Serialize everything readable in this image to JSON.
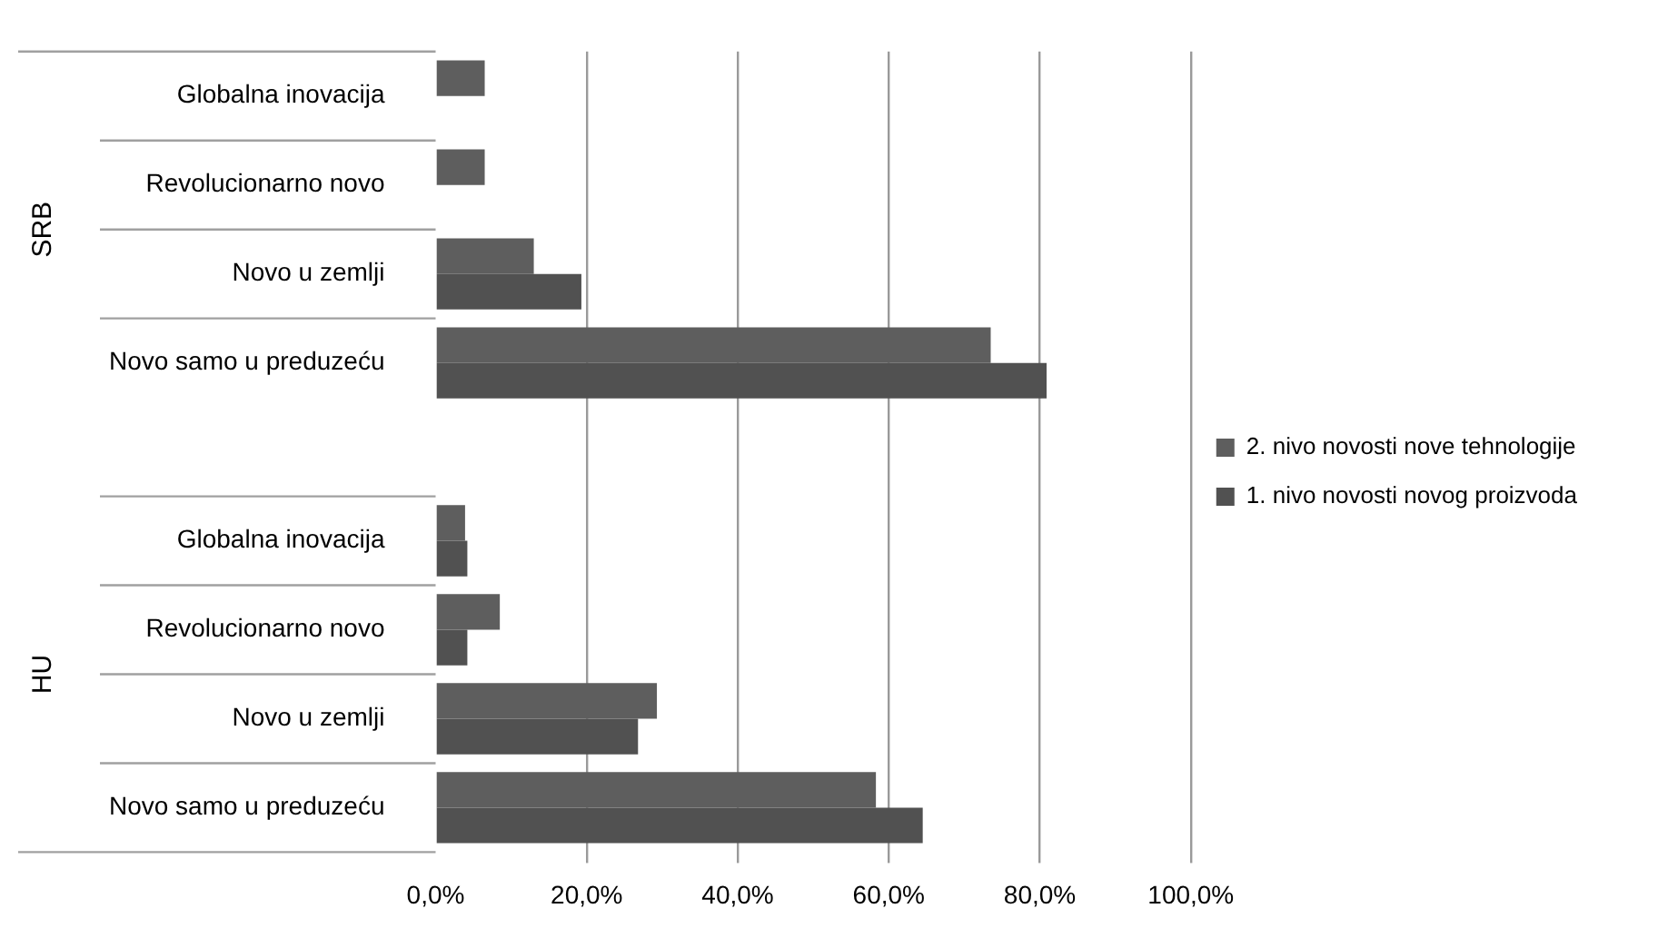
{
  "chart_data": {
    "type": "bar",
    "orientation": "horizontal",
    "categories": [
      "Globalna inovacija",
      "Revolucionarno novo",
      "Novo u zemlji",
      "Novo samo u preduzeću",
      null,
      "Globalna inovacija",
      "Revolucionarno novo",
      "Novo u zemlji",
      "Novo samo u preduzeću"
    ],
    "series": [
      {
        "name": "2. nivo novosti nove tehnologije",
        "color": "#5e5e5e",
        "values": [
          6.5,
          6.5,
          13.0,
          73.5,
          null,
          3.9,
          8.5,
          29.3,
          58.3
        ]
      },
      {
        "name": "1. nivo novosti novog proizvoda",
        "color": "#515151",
        "values": [
          0,
          0,
          19.3,
          80.9,
          null,
          4.2,
          4.2,
          26.8,
          64.5
        ]
      }
    ],
    "xlim": [
      0,
      100
    ],
    "xticks": [
      {
        "value": 0,
        "label": "0,0%"
      },
      {
        "value": 20,
        "label": "20,0%"
      },
      {
        "value": 40,
        "label": "40,0%"
      },
      {
        "value": 60,
        "label": "60,0%"
      },
      {
        "value": 80,
        "label": "80,0%"
      },
      {
        "value": 100,
        "label": "100,0%"
      }
    ],
    "annotations": [
      "SRB",
      "HU"
    ],
    "grid": "x",
    "legend": "right"
  }
}
